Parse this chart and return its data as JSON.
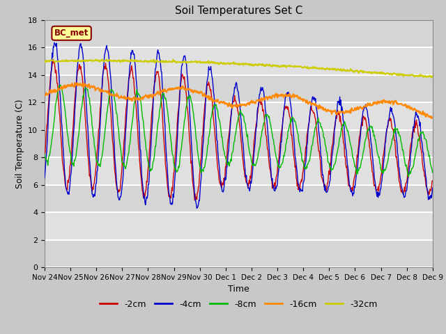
{
  "title": "Soil Temperatures Set C",
  "xlabel": "Time",
  "ylabel": "Soil Temperature (C)",
  "ylim": [
    0,
    18
  ],
  "yticks": [
    0,
    2,
    4,
    6,
    8,
    10,
    12,
    14,
    16,
    18
  ],
  "legend_label": "BC_met",
  "series_labels": [
    "-2cm",
    "-4cm",
    "-8cm",
    "-16cm",
    "-32cm"
  ],
  "series_colors": [
    "#cc0000",
    "#0000cc",
    "#00bb00",
    "#ff8800",
    "#cccc00"
  ],
  "x_tick_labels": [
    "Nov 24",
    "Nov 25",
    "Nov 26",
    "Nov 27",
    "Nov 28",
    "Nov 29",
    "Nov 30",
    "Dec 1",
    "Dec 2",
    "Dec 3",
    "Dec 4",
    "Dec 5",
    "Dec 6",
    "Dec 7",
    "Dec 8",
    "Dec 9"
  ],
  "n_days": 15,
  "pts_per_day": 48
}
